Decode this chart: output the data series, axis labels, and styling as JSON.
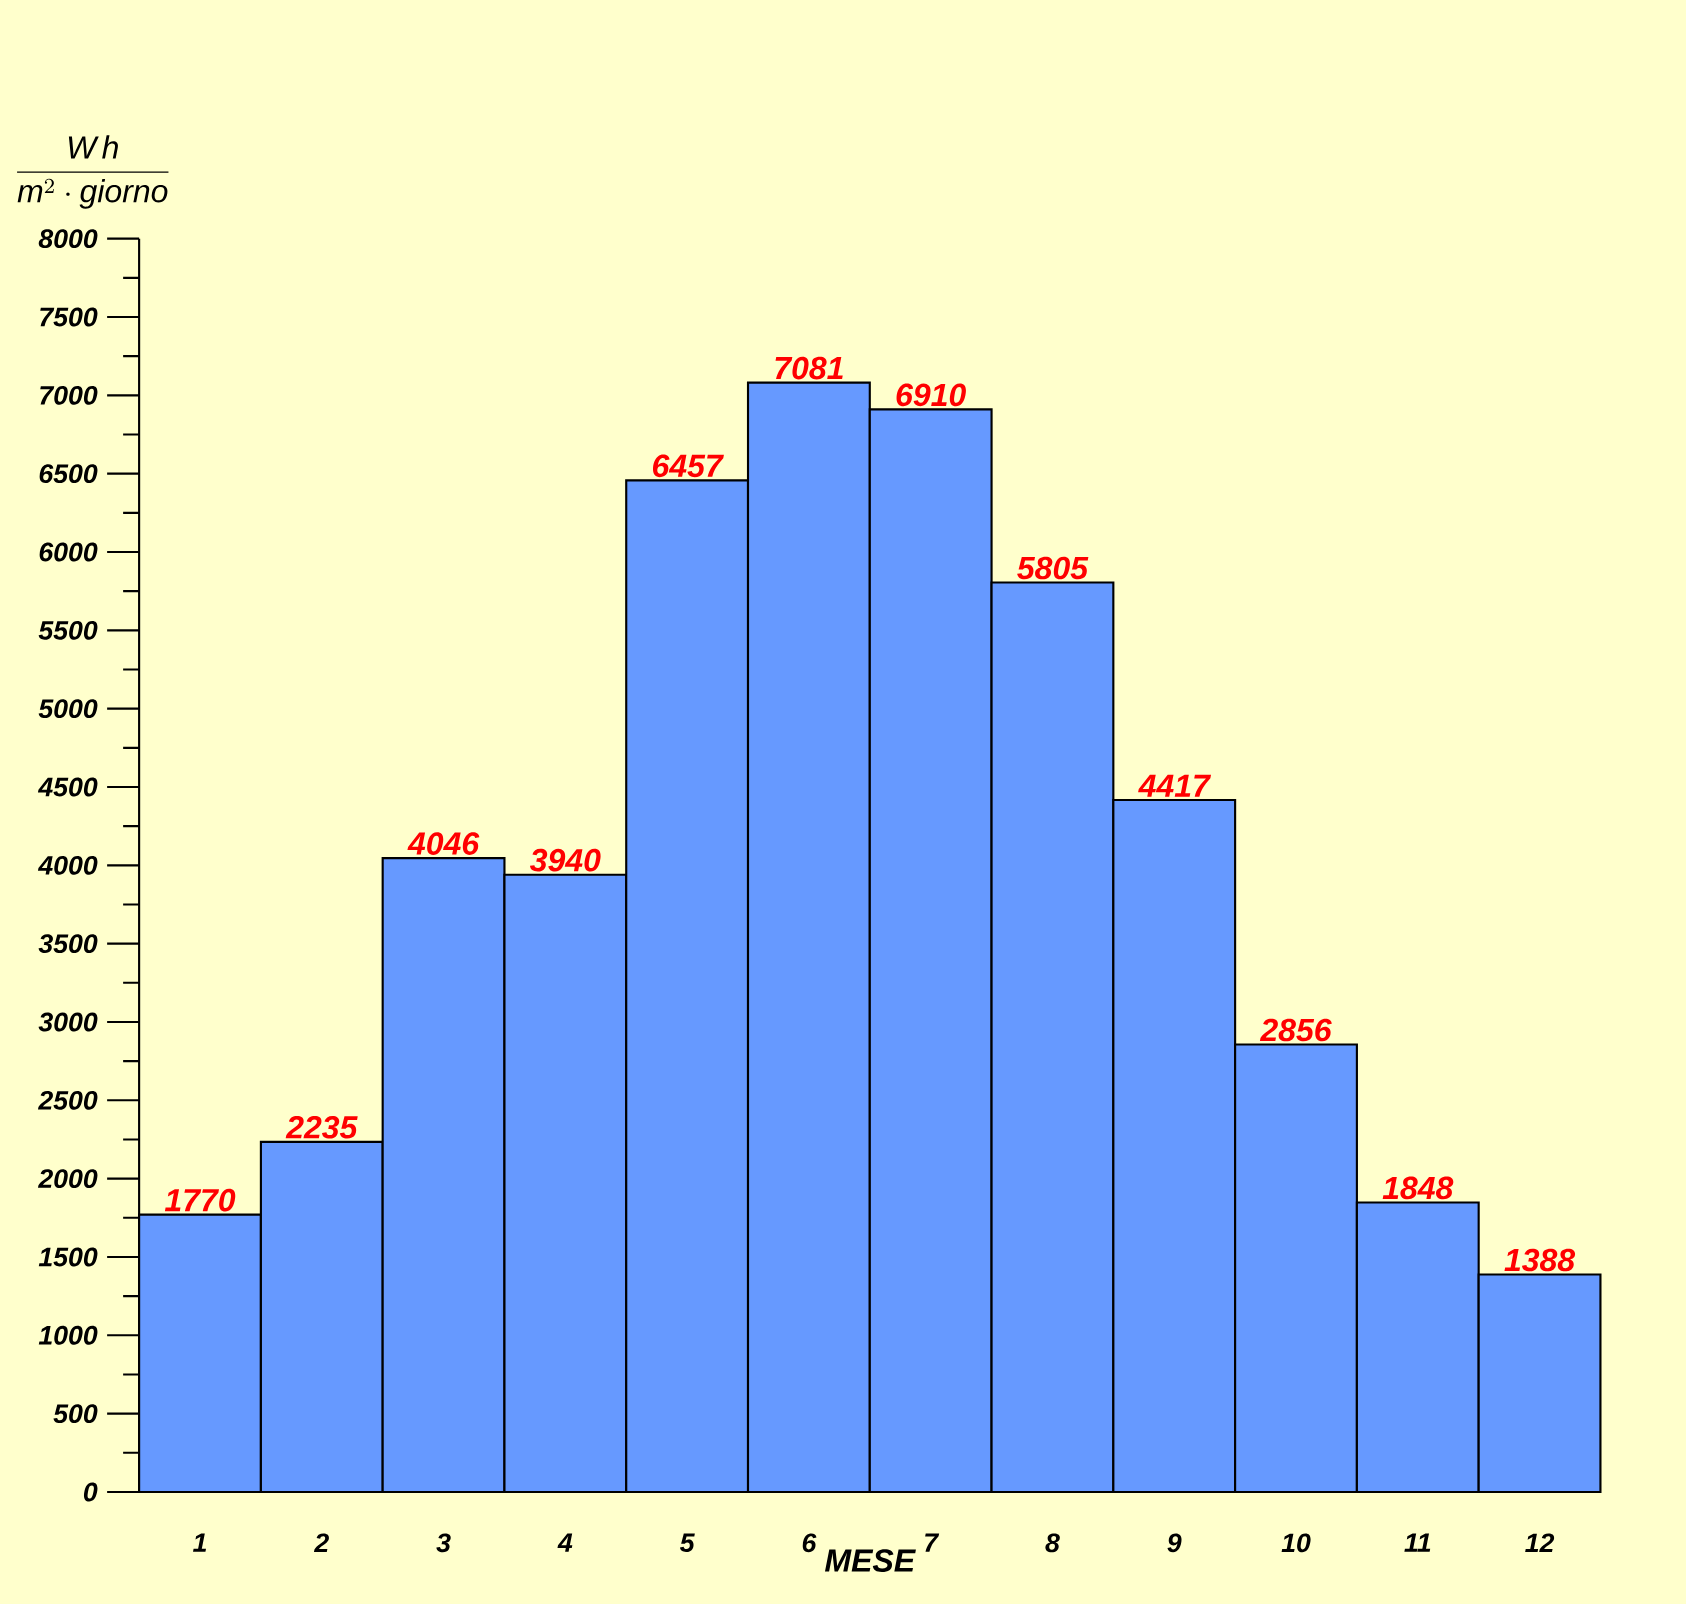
{
  "chart_data": {
    "type": "bar",
    "xlabel": "MESE",
    "ylabel": "\\frac{\\mathit{W\\,h}}{\\mathit{m}^{2}\\cdot\\mathit{giorno}}",
    "categories": [
      "1",
      "2",
      "3",
      "4",
      "5",
      "6",
      "7",
      "8",
      "9",
      "10",
      "11",
      "12"
    ],
    "values": [
      1770,
      2235,
      4046,
      3940,
      6457,
      7081,
      6910,
      5805,
      4417,
      2856,
      1848,
      1388
    ],
    "color": "#6699ff",
    "ylim": [
      0,
      8000
    ],
    "yticks": [
      0,
      500,
      1000,
      1500,
      2000,
      2500,
      3000,
      3500,
      4000,
      4500,
      5000,
      5500,
      6000,
      6500,
      7000,
      7500,
      8000
    ],
    "data_labels": true,
    "grid": false
  }
}
